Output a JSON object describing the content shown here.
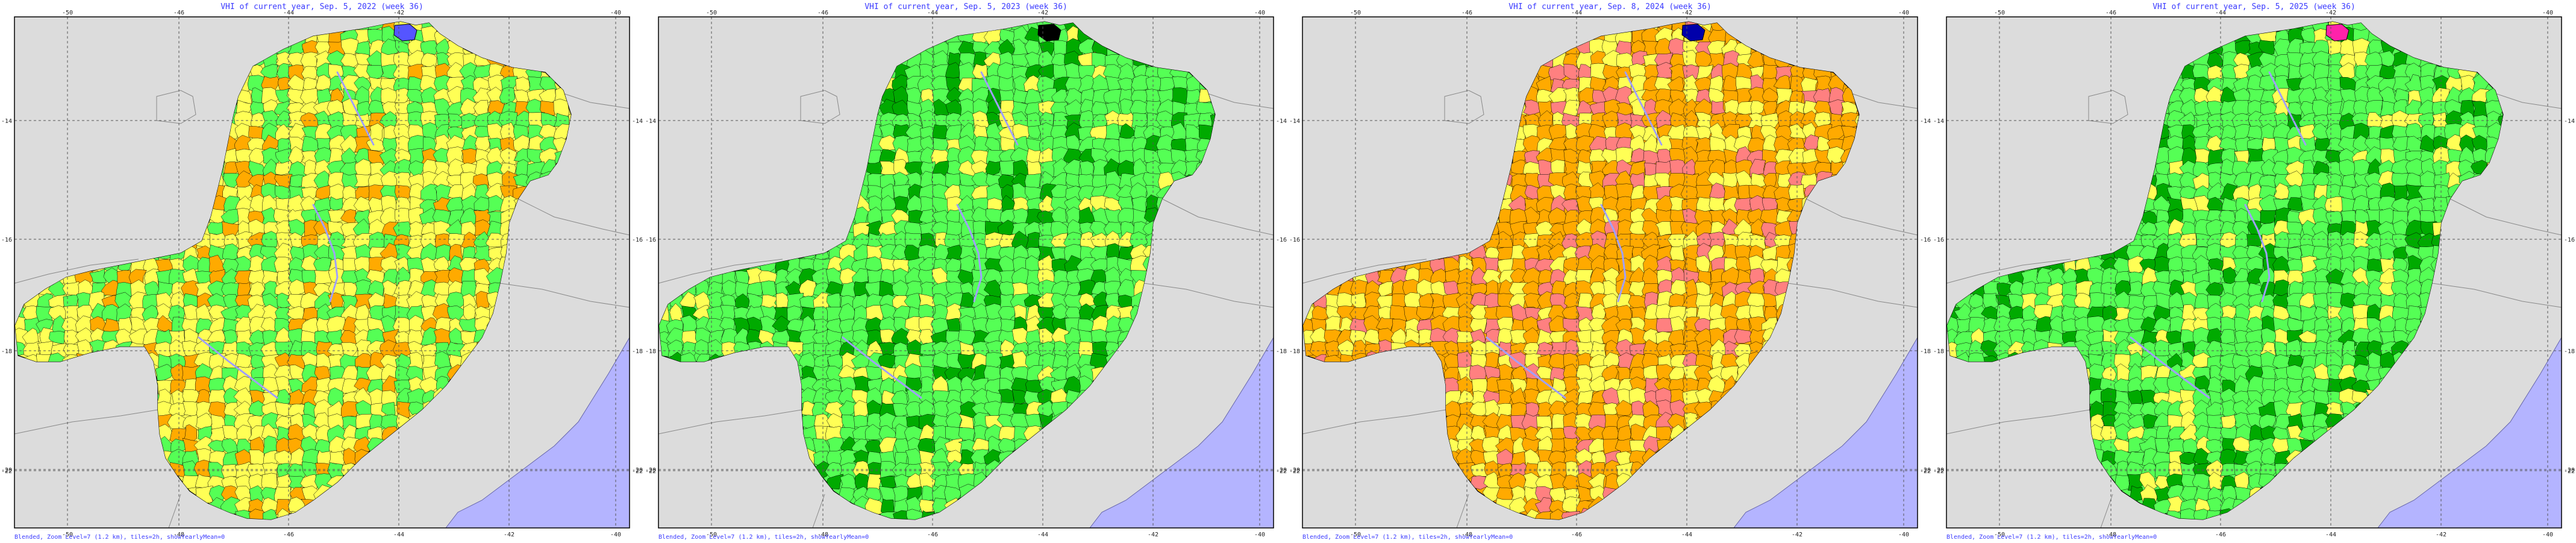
{
  "panels": [
    {
      "title": "VHI of current year, Sep. 5, 2022 (week 36)",
      "footer": "Blended, Zoom Level=7 (1.2 km), tiles=2h, showYearlyMean=0",
      "base_color": "#ffff55",
      "palette": [
        "#ffff55",
        "#ffff55",
        "#ffff55",
        "#55ff55",
        "#55ff55",
        "#ffaa00"
      ],
      "special": {
        "color": "#5555ff",
        "label": "north-tip"
      }
    },
    {
      "title": "VHI of current year, Sep. 5, 2023 (week 36)",
      "footer": "Blended, Zoom Level=7 (1.2 km), tiles=2h, showYearlyMean=0",
      "base_color": "#55ff55",
      "palette": [
        "#55ff55",
        "#55ff55",
        "#55ff55",
        "#00aa00",
        "#ffff55",
        "#55ff55"
      ],
      "special": {
        "color": "#000000",
        "label": "north-tip"
      }
    },
    {
      "title": "VHI of current year, Sep. 8, 2024 (week 36)",
      "footer": "Blended, Zoom Level=7 (1.2 km), tiles=2h, showYearlyMean=0",
      "base_color": "#ffaa00",
      "palette": [
        "#ffaa00",
        "#ffaa00",
        "#ffaa00",
        "#ffff55",
        "#ffff55",
        "#ff8080"
      ],
      "special": {
        "color": "#0000aa",
        "label": "north-tip"
      }
    },
    {
      "title": "VHI of current year, Sep. 5, 2025 (week 36)",
      "footer": "Blended, Zoom Level=7 (1.2 km), tiles=2h, showYearlyMean=0",
      "base_color": "#55ff55",
      "palette": [
        "#55ff55",
        "#55ff55",
        "#55ff55",
        "#55ff55",
        "#ffff55",
        "#00aa00"
      ],
      "special": {
        "color": "#ff22aa",
        "label": "north-tip"
      }
    }
  ],
  "axes": {
    "x_top": [
      "-50",
      "-46",
      "-44",
      "-42",
      "-40"
    ],
    "x_bottom": [
      "-50",
      "-48",
      "-46",
      "-44",
      "-42",
      "-40"
    ],
    "y_left": [
      "-14",
      "-16",
      "-18",
      "-20",
      "-22"
    ],
    "y_right": [
      "-14",
      "-16",
      "-18",
      "-20",
      "-22"
    ]
  },
  "colors": {
    "background_land": "#dcdcdc",
    "ocean": "#b4b4ff",
    "rivers": "#a0a0ff",
    "border": "#000000",
    "grid": "#555555",
    "title_text": "#3a3aff"
  }
}
